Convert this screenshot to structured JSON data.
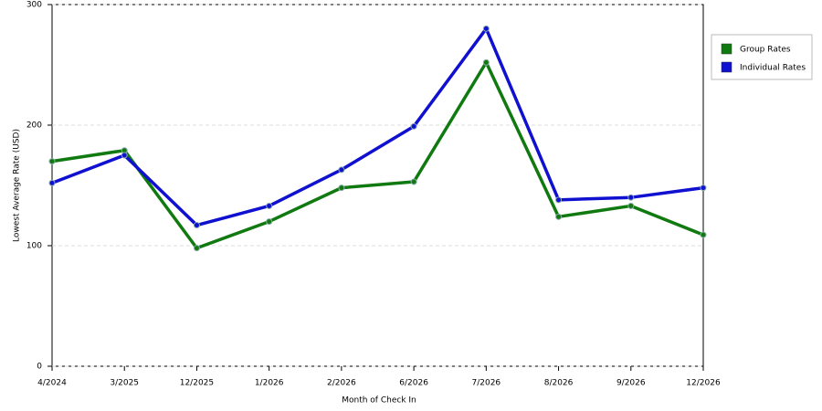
{
  "chart_data": {
    "type": "line",
    "x_label": "Month of Check In",
    "y_label": "Lowest Average Rate (USD)",
    "categories": [
      "4/2024",
      "3/2025",
      "12/2025",
      "1/2026",
      "2/2026",
      "6/2026",
      "7/2026",
      "8/2026",
      "9/2026",
      "12/2026"
    ],
    "series": [
      {
        "name": "Group Rates",
        "color": "#107a10",
        "values": [
          170,
          179,
          98,
          120,
          148,
          153,
          252,
          124,
          133,
          109
        ]
      },
      {
        "name": "Individual Rates",
        "color": "#1010d0",
        "values": [
          152,
          175,
          117,
          133,
          163,
          199,
          280,
          138,
          140,
          148
        ]
      }
    ],
    "ylim": [
      0,
      300
    ],
    "yticks": [
      0,
      100,
      200,
      300
    ],
    "grid": true,
    "legend": "right"
  }
}
